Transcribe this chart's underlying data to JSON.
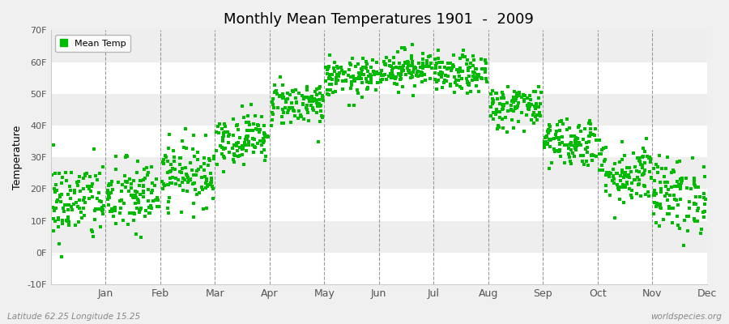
{
  "title": "Monthly Mean Temperatures 1901  -  2009",
  "ylabel": "Temperature",
  "subtitle_left": "Latitude 62.25 Longitude 15.25",
  "subtitle_right": "worldspecies.org",
  "legend_label": "Mean Temp",
  "ylim": [
    -10,
    70
  ],
  "yticks": [
    -10,
    0,
    10,
    20,
    30,
    40,
    50,
    60,
    70
  ],
  "ytick_labels": [
    "-10F",
    "0F",
    "10F",
    "20F",
    "30F",
    "40F",
    "50F",
    "60F",
    "70F"
  ],
  "months": [
    "Jan",
    "Feb",
    "Mar",
    "Apr",
    "May",
    "Jun",
    "Jul",
    "Aug",
    "Sep",
    "Oct",
    "Nov",
    "Dec"
  ],
  "dot_color": "#00BB00",
  "background_color": "#ffffff",
  "band_colors": [
    "#ffffff",
    "#eeeeee"
  ],
  "marker": "s",
  "marker_size": 2.5,
  "n_years": 109,
  "mean_temps_F": [
    16.0,
    17.5,
    25.0,
    36.0,
    47.0,
    55.0,
    58.0,
    56.0,
    46.0,
    35.0,
    25.0,
    18.0
  ],
  "std_temps_F": [
    6.5,
    6.0,
    5.0,
    4.0,
    3.5,
    3.0,
    3.0,
    3.0,
    3.5,
    4.0,
    5.0,
    6.0
  ],
  "random_seed": 42,
  "fig_bg": "#f0f0f0"
}
